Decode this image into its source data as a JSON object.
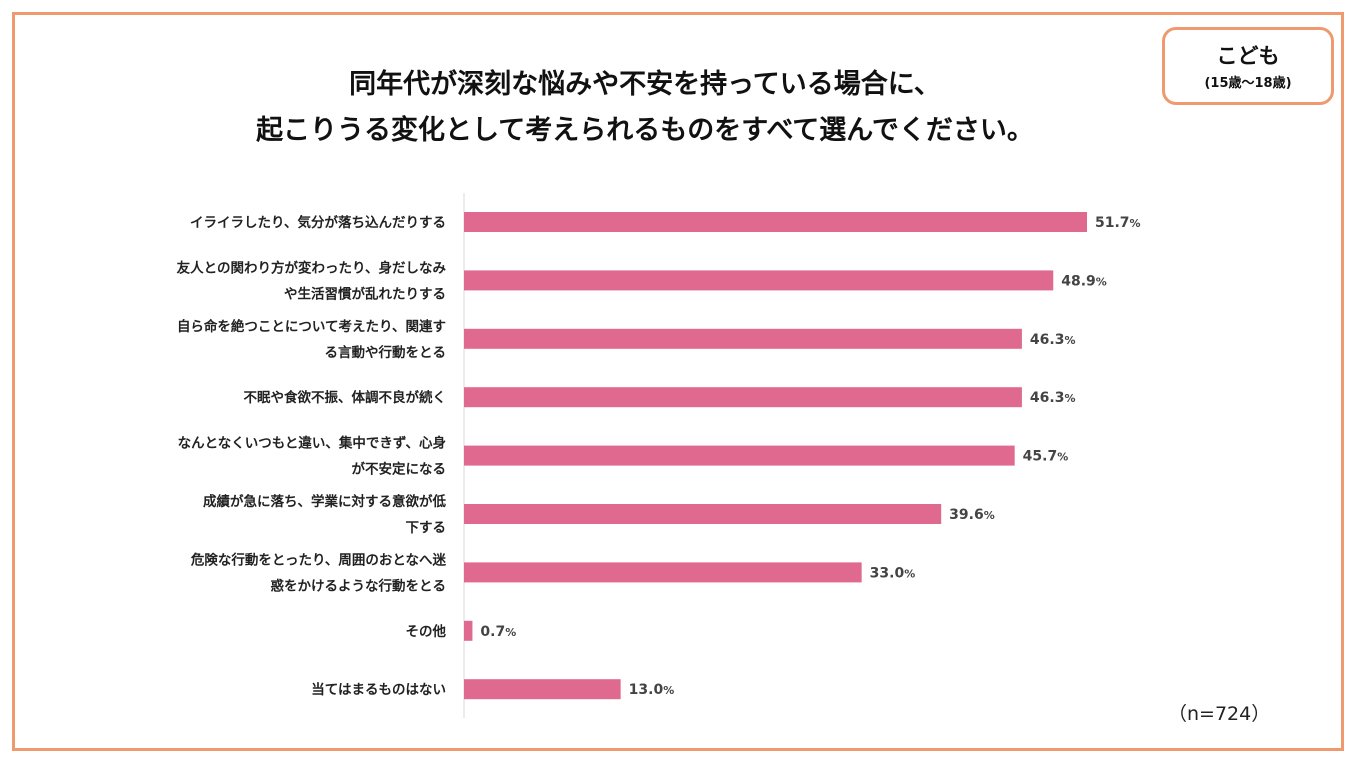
{
  "badge": {
    "label": "こども",
    "sublabel": "(15歳～18歳)"
  },
  "title": {
    "line1": "同年代が深刻な悩みや不安を持っている場合に、",
    "line2": "起こりうる変化として考えられるものをすべて選んでください。"
  },
  "sample_note": "（n=724）",
  "colors": {
    "bar": "#e0698f",
    "frame": "#ef9a6e",
    "axis": "#d9d9d9"
  },
  "chart_data": {
    "type": "bar",
    "orientation": "horizontal",
    "categories": [
      [
        "イライラしたり、気分が落ち込んだりする"
      ],
      [
        "友人との関わり方が変わったり、身だしなみ",
        "や生活習慣が乱れたりする"
      ],
      [
        "自ら命を絶つことについて考えたり、関連す",
        "る言動や行動をとる"
      ],
      [
        "不眠や食欲不振、体調不良が続く"
      ],
      [
        "なんとなくいつもと違い、集中できず、心身",
        "が不安定になる"
      ],
      [
        "成績が急に落ち、学業に対する意欲が低",
        "下する"
      ],
      [
        "危険な行動をとったり、周囲のおとなへ迷",
        "惑をかけるような行動をとる"
      ],
      [
        "その他"
      ],
      [
        "当てはまるものはない"
      ]
    ],
    "values": [
      51.7,
      48.9,
      46.3,
      46.3,
      45.7,
      39.6,
      33.0,
      0.7,
      13.0
    ],
    "value_labels": [
      "51.7",
      "48.9",
      "46.3",
      "46.3",
      "45.7",
      "39.6",
      "33.0",
      "0.7",
      "13.0"
    ],
    "unit": "%",
    "xlim": [
      0,
      60
    ],
    "gridlines": false
  }
}
